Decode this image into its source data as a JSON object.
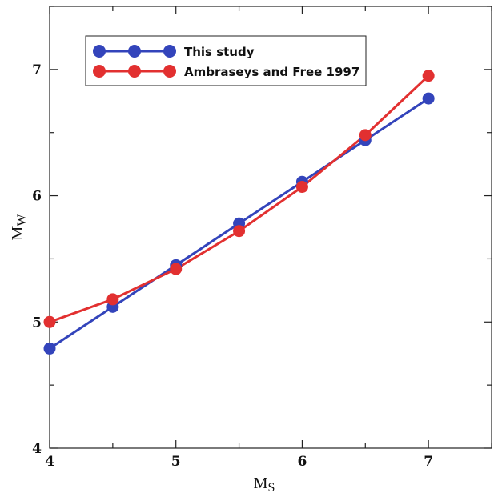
{
  "chart_data": {
    "type": "line",
    "title": "",
    "xlabel": {
      "main": "M",
      "sub": "S"
    },
    "ylabel": {
      "main": "M",
      "sub": "W"
    },
    "xlim": [
      4,
      7.5
    ],
    "ylim": [
      4,
      7.5
    ],
    "x_ticks": [
      4,
      5,
      6,
      7
    ],
    "y_ticks": [
      4,
      5,
      6,
      7
    ],
    "grid": false,
    "legend_position": "top-left",
    "series": [
      {
        "name": "This study",
        "color": "#3344bb",
        "x": [
          4,
          4.5,
          5,
          5.5,
          6,
          6.5,
          7
        ],
        "y": [
          4.79,
          5.12,
          5.45,
          5.78,
          6.11,
          6.44,
          6.77
        ]
      },
      {
        "name": "Ambraseys and Free 1997",
        "color": "#e23030",
        "x": [
          4,
          4.5,
          5,
          5.5,
          6,
          6.5,
          7
        ],
        "y": [
          5.0,
          5.18,
          5.42,
          5.72,
          6.07,
          6.48,
          6.95
        ]
      }
    ]
  }
}
